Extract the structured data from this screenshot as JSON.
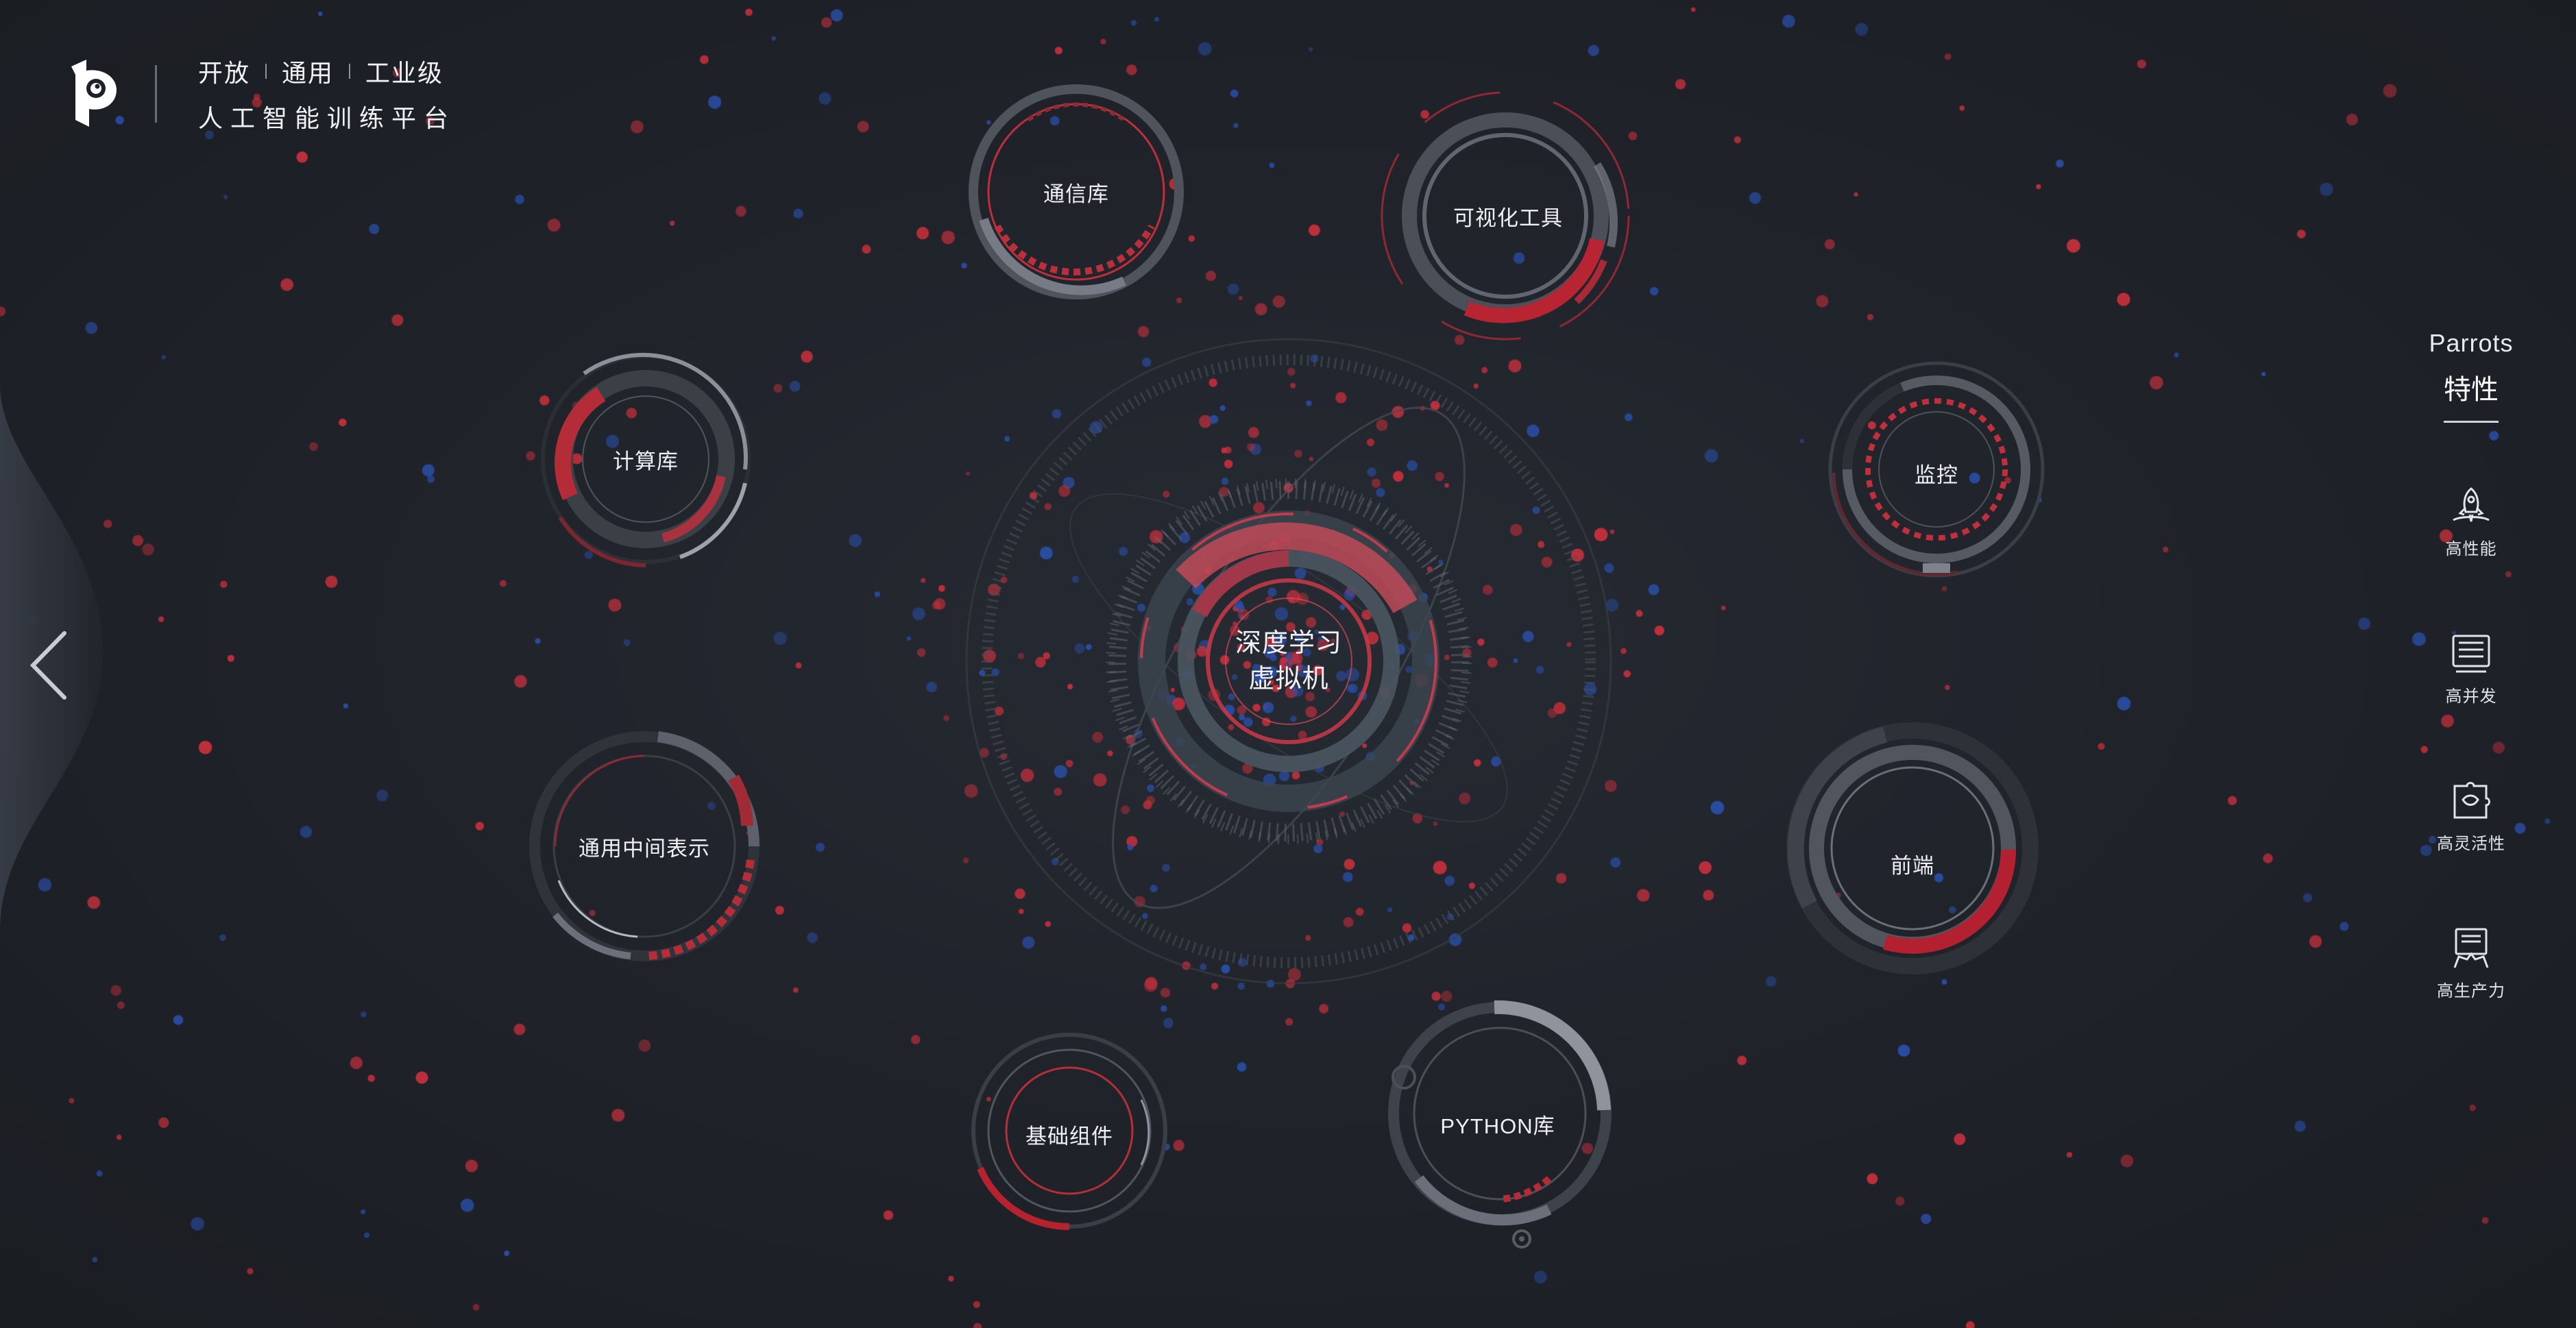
{
  "brand": {
    "tagline_items": [
      "开放",
      "通用",
      "工业级"
    ],
    "subtitle": "人工智能训练平台"
  },
  "core": {
    "line1": "深度学习",
    "line2": "虚拟机"
  },
  "modules": {
    "comm": "通信库",
    "vis": "可视化工具",
    "compute": "计算库",
    "monitor": "监控",
    "ir": "通用中间表示",
    "frontend": "前端",
    "base": "基础组件",
    "python": "PYTHON库"
  },
  "features": {
    "title": "Parrots",
    "subtitle": "特性",
    "items": [
      {
        "label": "高性能",
        "icon": "rocket-icon"
      },
      {
        "label": "高并发",
        "icon": "server-list-icon"
      },
      {
        "label": "高灵活性",
        "icon": "puzzle-icon"
      },
      {
        "label": "高生产力",
        "icon": "productivity-icon"
      }
    ]
  },
  "colors": {
    "background": "#1e2127",
    "accent_red": "#c6303c",
    "ring_gray": "#5a5f6a",
    "particle_blue": "#2a4fa8"
  }
}
